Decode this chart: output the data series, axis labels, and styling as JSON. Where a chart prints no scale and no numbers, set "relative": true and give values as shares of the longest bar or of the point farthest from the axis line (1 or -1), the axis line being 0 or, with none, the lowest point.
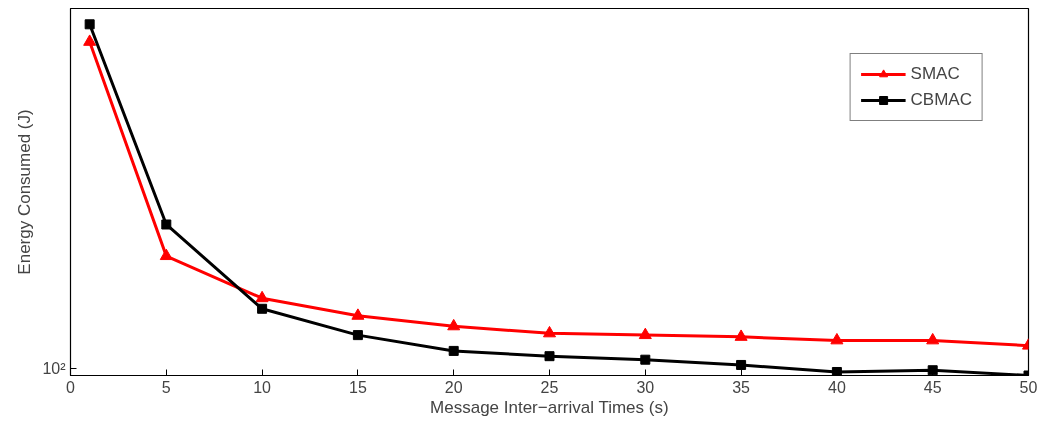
{
  "chart_data": {
    "type": "line",
    "xlabel": "Message Inter−arrival Times (s)",
    "ylabel": "Energy Consumed (J)",
    "x": [
      1,
      5,
      10,
      15,
      20,
      25,
      30,
      35,
      40,
      45,
      50
    ],
    "relative": true,
    "series": [
      {
        "name": "SMAC",
        "color": "#ff0000",
        "marker": "triangle",
        "values": [
          0.95,
          0.34,
          0.22,
          0.17,
          0.14,
          0.12,
          0.115,
          0.11,
          0.1,
          0.1,
          0.085
        ]
      },
      {
        "name": "CBMAC",
        "color": "#000000",
        "marker": "square",
        "values": [
          1.0,
          0.43,
          0.19,
          0.115,
          0.07,
          0.055,
          0.045,
          0.03,
          0.01,
          0.015,
          0.0
        ]
      }
    ],
    "xlim": [
      0,
      50
    ],
    "xticks": [
      0,
      5,
      10,
      15,
      20,
      25,
      30,
      35,
      40,
      45,
      50
    ],
    "annotations": [
      "10²"
    ],
    "grid": false,
    "legend": "top right",
    "line_style": "solid"
  }
}
